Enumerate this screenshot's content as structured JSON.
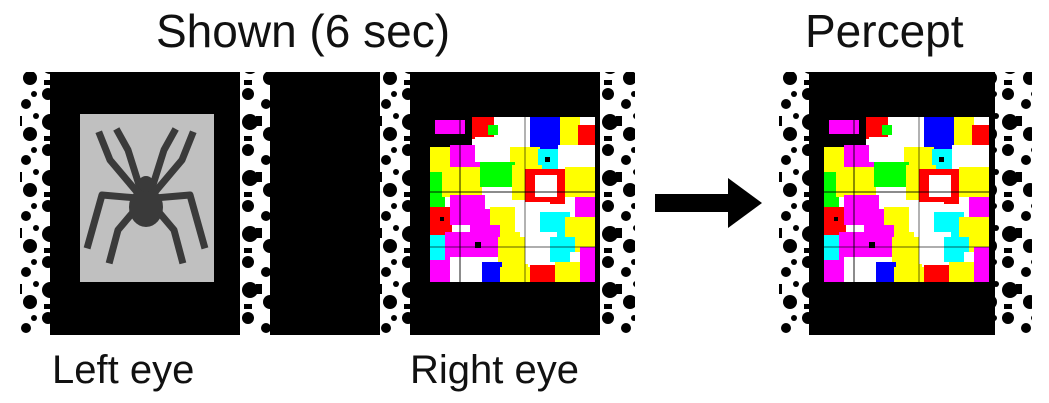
{
  "headings": {
    "shown": "Shown (6 sec)",
    "percept": "Percept"
  },
  "labels": {
    "left_eye": "Left eye",
    "right_eye": "Right eye"
  },
  "icons": {
    "spider": "spider-icon",
    "arrow": "arrow-right-icon",
    "mondrian": "mondrian-mask-pattern",
    "border": "checkerboard-border-pattern"
  },
  "colors": {
    "frame": "#000000",
    "spider_bg": "#c0c0c0",
    "spider": "#3a3a3a",
    "mask": [
      "#ff00ff",
      "#ffff00",
      "#00ffff",
      "#00ff00",
      "#ff0000",
      "#0000ff",
      "#ffffff",
      "#000000"
    ]
  }
}
